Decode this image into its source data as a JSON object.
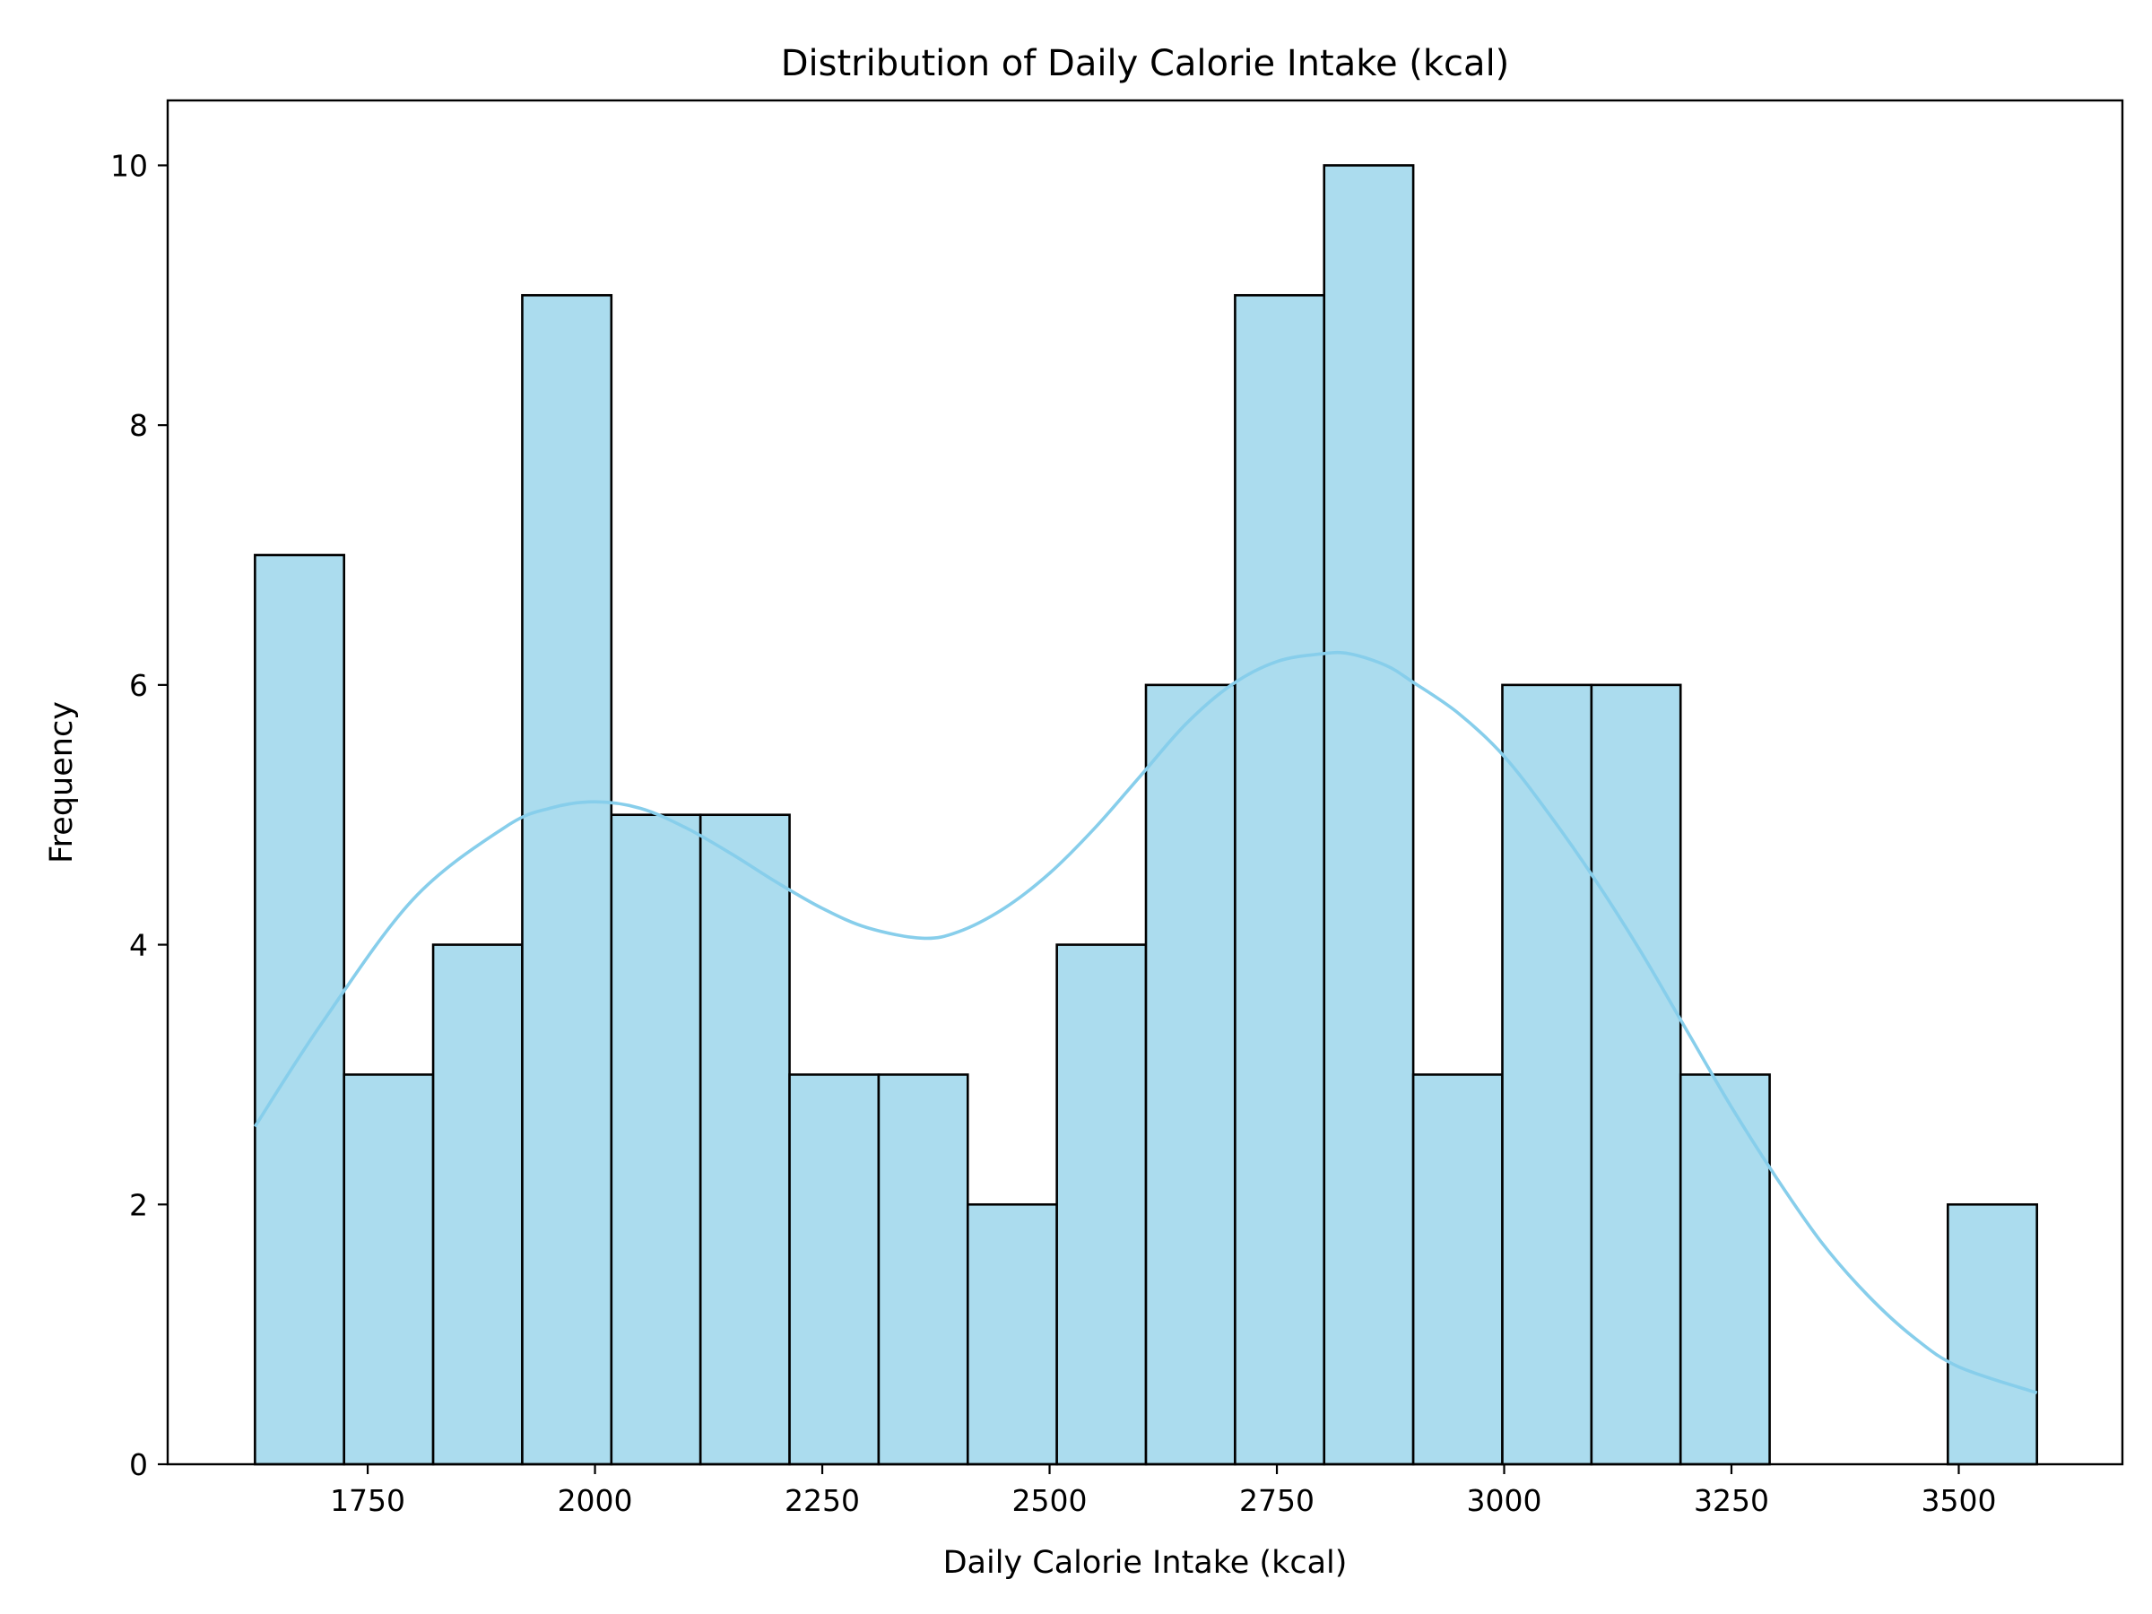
{
  "chart_data": {
    "type": "bar",
    "title": "Distribution of Daily Calorie Intake (kcal)",
    "xlabel": "Daily Calorie Intake (kcal)",
    "ylabel": "Frequency",
    "xlim": [
      1530,
      3680
    ],
    "ylim": [
      0,
      10.5
    ],
    "xticks": [
      1750,
      2000,
      2250,
      2500,
      2750,
      3000,
      3250,
      3500
    ],
    "yticks": [
      0,
      2,
      4,
      6,
      8,
      10
    ],
    "bins": [
      {
        "x0": 1626,
        "x1": 1724,
        "count": 7
      },
      {
        "x0": 1724,
        "x1": 1822,
        "count": 3
      },
      {
        "x0": 1822,
        "x1": 1920,
        "count": 4
      },
      {
        "x0": 1920,
        "x1": 2018,
        "count": 9
      },
      {
        "x0": 2018,
        "x1": 2116,
        "count": 5
      },
      {
        "x0": 2116,
        "x1": 2214,
        "count": 5
      },
      {
        "x0": 2214,
        "x1": 2312,
        "count": 3
      },
      {
        "x0": 2312,
        "x1": 2410,
        "count": 3
      },
      {
        "x0": 2410,
        "x1": 2508,
        "count": 2
      },
      {
        "x0": 2508,
        "x1": 2606,
        "count": 4
      },
      {
        "x0": 2606,
        "x1": 2704,
        "count": 6
      },
      {
        "x0": 2704,
        "x1": 2802,
        "count": 9
      },
      {
        "x0": 2802,
        "x1": 2900,
        "count": 10
      },
      {
        "x0": 2900,
        "x1": 2998,
        "count": 3
      },
      {
        "x0": 2998,
        "x1": 3096,
        "count": 6
      },
      {
        "x0": 3096,
        "x1": 3194,
        "count": 6
      },
      {
        "x0": 3194,
        "x1": 3292,
        "count": 3
      },
      {
        "x0": 3292,
        "x1": 3390,
        "count": 0
      },
      {
        "x0": 3390,
        "x1": 3488,
        "count": 0
      },
      {
        "x0": 3488,
        "x1": 3586,
        "count": 2
      }
    ],
    "kde": {
      "x": [
        1626,
        1700,
        1800,
        1900,
        1950,
        2000,
        2050,
        2100,
        2150,
        2200,
        2250,
        2300,
        2360,
        2400,
        2450,
        2500,
        2550,
        2600,
        2650,
        2700,
        2750,
        2800,
        2830,
        2870,
        2900,
        2950,
        3000,
        3050,
        3100,
        3150,
        3200,
        3250,
        3300,
        3350,
        3400,
        3450,
        3500,
        3586
      ],
      "y": [
        2.6,
        3.4,
        4.35,
        4.9,
        5.05,
        5.1,
        5.05,
        4.9,
        4.7,
        4.48,
        4.28,
        4.13,
        4.05,
        4.1,
        4.28,
        4.55,
        4.9,
        5.3,
        5.7,
        6.0,
        6.18,
        6.24,
        6.24,
        6.15,
        6.02,
        5.78,
        5.45,
        5.0,
        4.5,
        3.95,
        3.35,
        2.75,
        2.2,
        1.7,
        1.3,
        0.98,
        0.75,
        0.55
      ]
    },
    "colors": {
      "bar_fill": "#abdcee",
      "bar_edge": "#000000",
      "kde_line": "#87ceeb",
      "axis": "#000000"
    }
  }
}
